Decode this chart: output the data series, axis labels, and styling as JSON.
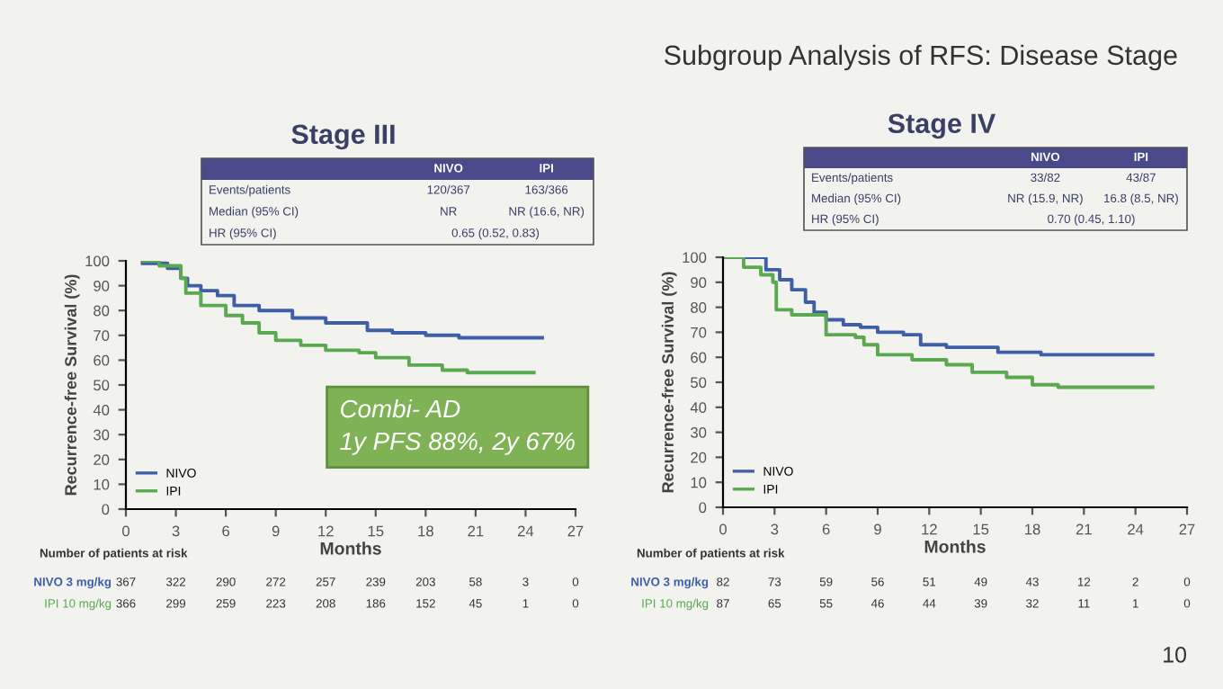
{
  "chart_data": [
    {
      "type": "step",
      "title": "Stage III",
      "xlabel": "Months",
      "ylabel": "Recurrence-free Survival (%)",
      "xlim": [
        0,
        27
      ],
      "xticks": [
        0,
        3,
        6,
        9,
        12,
        15,
        18,
        21,
        24,
        27
      ],
      "ylim": [
        0,
        100
      ],
      "yticks": [
        0,
        10,
        20,
        30,
        40,
        50,
        60,
        70,
        80,
        90,
        100
      ],
      "grid": false,
      "legend": "bottom left",
      "series": [
        {
          "name": "NIVO",
          "color": "#3f5ea8",
          "x": [
            1,
            2.5,
            3.3,
            3.7,
            4.5,
            5.5,
            6.5,
            8,
            10,
            12,
            14.5,
            16,
            18,
            20,
            22,
            25
          ],
          "values": [
            99,
            97,
            93,
            90,
            88,
            86,
            82,
            80,
            77,
            75,
            72,
            71,
            70,
            69,
            69,
            69
          ]
        },
        {
          "name": "IPI",
          "color": "#5aa84f",
          "x": [
            1,
            2,
            3.3,
            3.6,
            4.5,
            6,
            7,
            8,
            9,
            10.5,
            12,
            14,
            15,
            17,
            19,
            20.5,
            22,
            24.5
          ],
          "values": [
            100,
            98,
            93,
            87,
            82,
            78,
            75,
            71,
            68,
            66,
            64,
            63,
            61,
            58,
            56,
            55,
            55,
            55
          ]
        }
      ],
      "annotations": [
        "NIVO",
        "IPI",
        "Events/patients",
        "120/367",
        "163/366",
        "Median (95% CI)",
        "NR",
        "NR (16.6, NR)",
        "HR (95% CI)",
        "0.65 (0.52, 0.83)",
        "Number of patients at risk",
        "NIVO 3 mg/kg",
        "367",
        "322",
        "290",
        "272",
        "257",
        "239",
        "203",
        "58",
        "3",
        "0",
        "IPI 10 mg/kg",
        "366",
        "299",
        "259",
        "223",
        "208",
        "186",
        "152",
        "45",
        "1",
        "0",
        "Combi- AD\n1y PFS 88%, 2y 67%",
        "Subgroup Analysis of RFS: Disease Stage",
        "10"
      ]
    },
    {
      "type": "step",
      "title": "Stage IV",
      "xlabel": "Months",
      "ylabel": "Recurrence-free Survival (%)",
      "xlim": [
        0,
        27
      ],
      "xticks": [
        0,
        3,
        6,
        9,
        12,
        15,
        18,
        21,
        24,
        27
      ],
      "ylim": [
        0,
        100
      ],
      "yticks": [
        0,
        10,
        20,
        30,
        40,
        50,
        60,
        70,
        80,
        90,
        100
      ],
      "grid": false,
      "legend": "bottom left",
      "series": [
        {
          "name": "NIVO",
          "color": "#3f5ea8",
          "x": [
            0,
            1.7,
            2.5,
            3.3,
            4,
            4.8,
            5.3,
            6,
            7,
            8,
            9,
            10.5,
            11.5,
            13,
            16,
            18.5,
            20,
            25
          ],
          "values": [
            100,
            100,
            95,
            91,
            87,
            82,
            78,
            75,
            73,
            72,
            70,
            69,
            65,
            64,
            62,
            61,
            61,
            61
          ]
        },
        {
          "name": "IPI",
          "color": "#5aa84f",
          "x": [
            0,
            1.2,
            2.2,
            2.9,
            3.1,
            4,
            6,
            7.7,
            8.2,
            9,
            11,
            13,
            14.5,
            16.5,
            18,
            19.5,
            22,
            25
          ],
          "values": [
            100,
            96,
            93,
            90,
            79,
            77,
            69,
            68,
            65,
            61,
            59,
            57,
            54,
            52,
            49,
            48,
            48,
            48
          ]
        }
      ],
      "annotations": [
        "NIVO",
        "IPI",
        "Events/patients",
        "33/82",
        "43/87",
        "Median (95% CI)",
        "NR (15.9, NR)",
        "16.8 (8.5, NR)",
        "HR (95% CI)",
        "0.70 (0.45, 1.10)",
        "Number of patients at risk",
        "NIVO 3 mg/kg",
        "82",
        "73",
        "59",
        "56",
        "51",
        "49",
        "43",
        "12",
        "2",
        "0",
        "IPI 10 mg/kg",
        "87",
        "65",
        "55",
        "46",
        "44",
        "39",
        "32",
        "11",
        "1",
        "0"
      ]
    }
  ]
}
